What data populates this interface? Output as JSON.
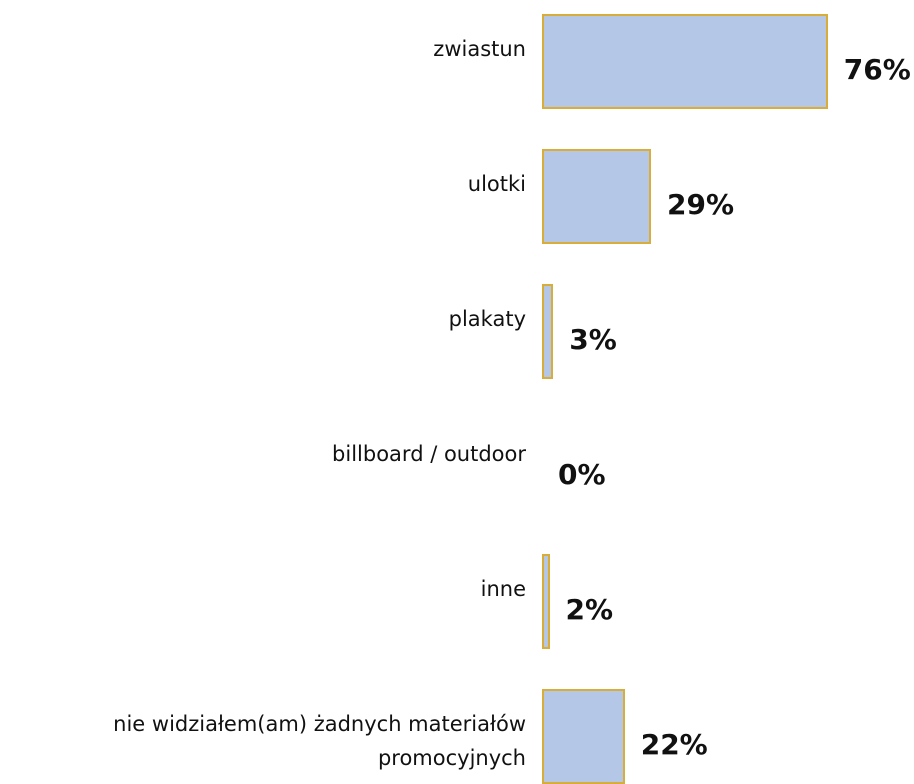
{
  "chart_data": {
    "type": "bar",
    "orientation": "horizontal",
    "categories": [
      "zwiastun",
      "ulotki",
      "plakaty",
      "billboard / outdoor",
      "inne",
      "nie widziałem(am) żadnych materiałów promocyjnych"
    ],
    "values": [
      76,
      29,
      3,
      0,
      2,
      22
    ],
    "value_labels": [
      "76%",
      "29%",
      "3%",
      "0%",
      "2%",
      "22%"
    ],
    "color": "#b4c7e7",
    "edge_color": "#d9ad3a"
  }
}
